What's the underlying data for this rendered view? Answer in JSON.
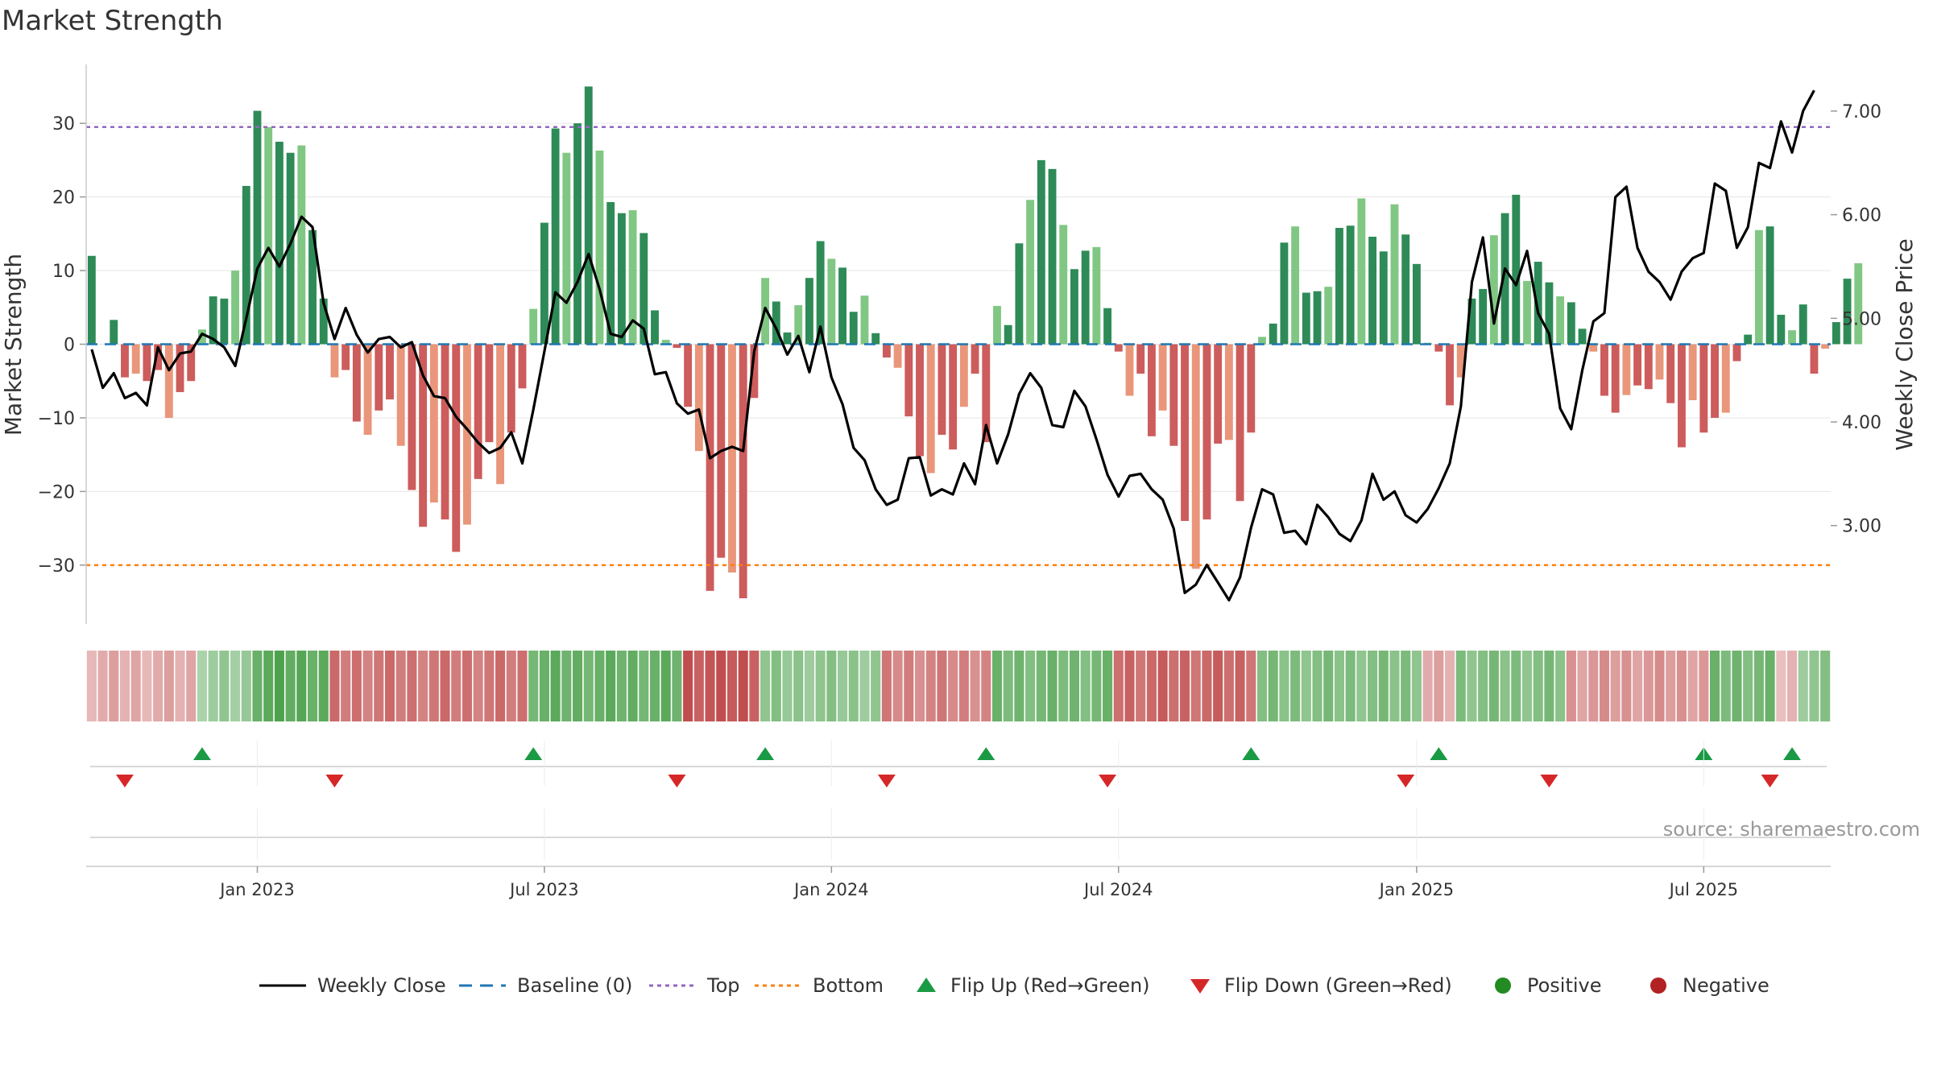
{
  "chart_data": {
    "type": "bar+line",
    "title": "Market Strength",
    "ylabel_left": "Market Strength",
    "ylabel_right": "Weekly Close Price",
    "ylim_left": [
      -38,
      38
    ],
    "ylim_right": [
      2.05,
      7.45
    ],
    "yticks_left": [
      -30,
      -20,
      -10,
      0,
      10,
      20,
      30
    ],
    "ytick_labels_left": [
      "−30",
      "−20",
      "−10",
      "0",
      "10",
      "20",
      "30"
    ],
    "yticks_right": [
      3.0,
      4.0,
      5.0,
      6.0,
      7.0
    ],
    "ytick_labels_right": [
      "3.00",
      "4.00",
      "5.00",
      "6.00",
      "7.00"
    ],
    "top_line": 29.5,
    "bottom_line": -30,
    "weeks": 158,
    "x_ticks": [
      {
        "week": 15,
        "label": "Jan 2023"
      },
      {
        "week": 41,
        "label": "Jul 2023"
      },
      {
        "week": 67,
        "label": "Jan 2024"
      },
      {
        "week": 93,
        "label": "Jul 2024"
      },
      {
        "week": 120,
        "label": "Jan 2025"
      },
      {
        "week": 146,
        "label": "Jul 2025"
      }
    ],
    "strength": [
      12,
      0,
      3.3,
      -4.5,
      -4,
      -5,
      -3.5,
      -10,
      -6.5,
      -5,
      2,
      6.5,
      6.2,
      10,
      21.5,
      31.7,
      29.5,
      27.5,
      26,
      27,
      15.5,
      6.2,
      -4.5,
      -3.5,
      -10.5,
      -12.3,
      -9,
      -7.5,
      -13.8,
      -19.8,
      -24.8,
      -21.5,
      -23.8,
      -28.2,
      -24.5,
      -18.3,
      -13.3,
      -19,
      -12,
      -6,
      4.8,
      16.5,
      29.3,
      26,
      30,
      35,
      26.3,
      19.3,
      17.8,
      18.2,
      15.1,
      4.6,
      0.6,
      -0.5,
      -8.5,
      -14.5,
      -33.5,
      -29,
      -31,
      -34.5,
      -7.3,
      9,
      5.8,
      1.6,
      5.3,
      9,
      14,
      11.6,
      10.4,
      4.4,
      6.6,
      1.5,
      -1.8,
      -3.2,
      -9.8,
      -15.2,
      -17.5,
      -12.3,
      -14.3,
      -8.5,
      -4,
      -13.3,
      5.2,
      2.6,
      13.7,
      19.6,
      25,
      23.8,
      16.2,
      10.2,
      12.7,
      13.2,
      4.9,
      -1,
      -7,
      -4,
      -12.5,
      -9,
      -13.8,
      -24,
      -30.5,
      -23.8,
      -13.5,
      -13,
      -21.3,
      -12,
      1,
      2.8,
      13.8,
      16,
      7,
      7.2,
      7.8,
      15.8,
      16.1,
      19.8,
      14.6,
      12.6,
      19,
      14.9,
      10.9,
      0.2,
      -1,
      -8.3,
      -4.5,
      6.2,
      7.5,
      14.8,
      17.8,
      20.3,
      8.6,
      11.2,
      8.4,
      6.5,
      5.7,
      2.1,
      -1,
      -7,
      -9.3,
      -6.9,
      -5.6,
      -6.1,
      -4.8,
      -8,
      -14,
      -7.6,
      -12,
      -10,
      -9.3,
      -2.3,
      1.3,
      15.5,
      16,
      4,
      1.9,
      5.4,
      -4,
      -0.6,
      3,
      8.9,
      11
    ],
    "close": [
      4.7,
      4.33,
      4.47,
      4.23,
      4.28,
      4.16,
      4.72,
      4.5,
      4.66,
      4.68,
      4.85,
      4.8,
      4.72,
      4.54,
      5.0,
      5.48,
      5.68,
      5.5,
      5.72,
      5.98,
      5.88,
      5.15,
      4.8,
      5.1,
      4.84,
      4.67,
      4.8,
      4.82,
      4.72,
      4.77,
      4.45,
      4.25,
      4.23,
      4.05,
      3.93,
      3.8,
      3.7,
      3.75,
      3.9,
      3.6,
      4.12,
      4.68,
      5.25,
      5.15,
      5.35,
      5.62,
      5.28,
      4.85,
      4.82,
      4.98,
      4.9,
      4.46,
      4.48,
      4.18,
      4.08,
      4.12,
      3.65,
      3.72,
      3.76,
      3.72,
      4.68,
      5.1,
      4.9,
      4.65,
      4.83,
      4.48,
      4.92,
      4.43,
      4.17,
      3.75,
      3.63,
      3.35,
      3.2,
      3.25,
      3.65,
      3.66,
      3.29,
      3.35,
      3.3,
      3.6,
      3.4,
      3.97,
      3.6,
      3.88,
      4.27,
      4.47,
      4.33,
      3.97,
      3.95,
      4.3,
      4.15,
      3.83,
      3.49,
      3.28,
      3.48,
      3.5,
      3.35,
      3.25,
      2.97,
      2.35,
      2.43,
      2.62,
      2.45,
      2.28,
      2.5,
      2.98,
      3.35,
      3.3,
      2.93,
      2.95,
      2.82,
      3.2,
      3.08,
      2.92,
      2.85,
      3.05,
      3.5,
      3.25,
      3.33,
      3.1,
      3.03,
      3.16,
      3.36,
      3.6,
      4.15,
      5.35,
      5.78,
      4.95,
      5.48,
      5.32,
      5.65,
      5.05,
      4.85,
      4.13,
      3.93,
      4.5,
      4.97,
      5.05,
      6.17,
      6.27,
      5.68,
      5.45,
      5.35,
      5.18,
      5.45,
      5.58,
      5.63,
      6.3,
      6.23,
      5.68,
      5.88,
      6.5,
      6.45,
      6.9,
      6.6,
      7.0,
      7.2
    ],
    "regime_strips": [
      {
        "from": 0,
        "to": 9,
        "value": -0.3
      },
      {
        "from": 10,
        "to": 14,
        "value": 0.4
      },
      {
        "from": 15,
        "to": 21,
        "value": 0.9
      },
      {
        "from": 22,
        "to": 39,
        "value": -0.7
      },
      {
        "from": 40,
        "to": 53,
        "value": 0.8
      },
      {
        "from": 54,
        "to": 60,
        "value": -0.95
      },
      {
        "from": 61,
        "to": 71,
        "value": 0.5
      },
      {
        "from": 72,
        "to": 81,
        "value": -0.6
      },
      {
        "from": 82,
        "to": 92,
        "value": 0.7
      },
      {
        "from": 93,
        "to": 105,
        "value": -0.8
      },
      {
        "from": 106,
        "to": 120,
        "value": 0.6
      },
      {
        "from": 121,
        "to": 123,
        "value": -0.3
      },
      {
        "from": 124,
        "to": 133,
        "value": 0.6
      },
      {
        "from": 134,
        "to": 146,
        "value": -0.45
      },
      {
        "from": 147,
        "to": 152,
        "value": 0.7
      },
      {
        "from": 153,
        "to": 154,
        "value": -0.2
      },
      {
        "from": 155,
        "to": 157,
        "value": 0.5
      }
    ],
    "flips_up": [
      10,
      40,
      61,
      81,
      105,
      122,
      146,
      154
    ],
    "flips_down": [
      3,
      22,
      53,
      72,
      92,
      119,
      132,
      152
    ],
    "legend": [
      {
        "label": "Weekly Close",
        "kind": "line",
        "color": "#000000"
      },
      {
        "label": "Baseline (0)",
        "kind": "dash",
        "color": "#1f77b4"
      },
      {
        "label": "Top",
        "kind": "dot",
        "color": "#9467bd"
      },
      {
        "label": "Bottom",
        "kind": "dot",
        "color": "#ff7f0e"
      },
      {
        "label": "Flip Up (Red→Green)",
        "kind": "tri-up",
        "color": "#1a9a44"
      },
      {
        "label": "Flip Down (Green→Red)",
        "kind": "tri-down",
        "color": "#d62728"
      },
      {
        "label": "Positive",
        "kind": "circle",
        "color": "#228b22"
      },
      {
        "label": "Negative",
        "kind": "circle",
        "color": "#b22222"
      }
    ],
    "colors": {
      "pos_strong": "#2e8b57",
      "pos_weak": "#81c784",
      "neg_strong": "#cd5c5c",
      "neg_weak": "#e9967a",
      "grid": "#e6e6e6",
      "axis": "#cccccc"
    }
  },
  "source": "source: sharemaestro.com"
}
